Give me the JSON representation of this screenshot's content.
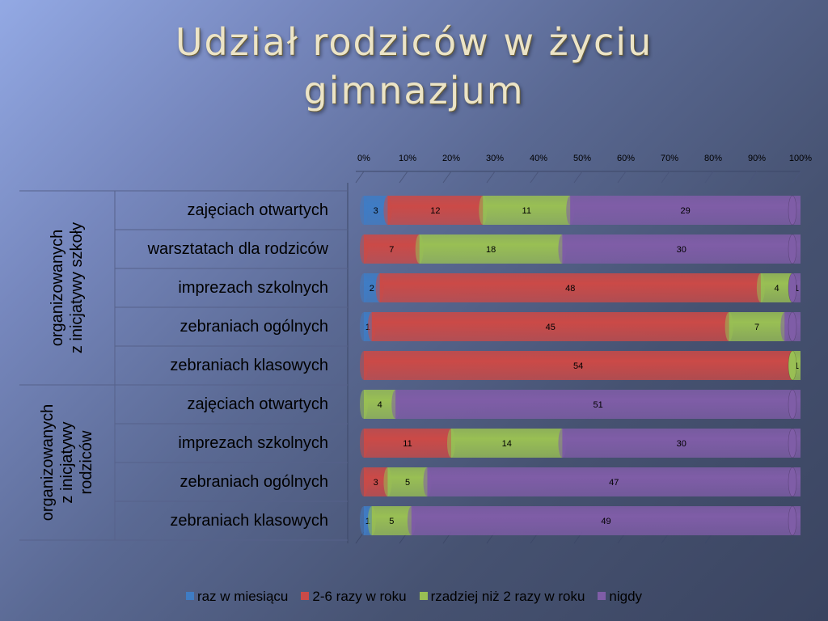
{
  "title": {
    "line1": "Udział rodziców w życiu",
    "line2": "gimnazjum"
  },
  "colors": {
    "raz": "#3f7cc4",
    "kilka": "#cb4a47",
    "rzadziej": "#99bf54",
    "nigdy": "#7f5da7"
  },
  "chart_data": {
    "type": "bar",
    "orientation": "horizontal",
    "stacked": "percent",
    "x_ticks": [
      "0%",
      "10%",
      "20%",
      "30%",
      "40%",
      "50%",
      "60%",
      "70%",
      "80%",
      "90%",
      "100%"
    ],
    "groups": [
      {
        "label_line1": "organizowanych",
        "label_line2": "z inicjatywy szkoły",
        "label_line3": ""
      },
      {
        "label_line1": "organizowanych",
        "label_line2": "z inicjatywy",
        "label_line3": "rodziców"
      }
    ],
    "categories": [
      "zajęciach otwartych",
      "warsztatach dla rodziców",
      "imprezach szkolnych",
      "zebraniach ogólnych",
      "zebraniach klasowych",
      "zajęciach otwartych",
      "imprezach szkolnych",
      "zebraniach ogólnych",
      "zebraniach klasowych"
    ],
    "series": [
      {
        "name": "raz w miesiącu",
        "values": [
          3,
          0,
          2,
          1,
          0,
          0,
          0,
          0,
          1
        ]
      },
      {
        "name": "2-6 razy w roku",
        "values": [
          12,
          7,
          48,
          45,
          54,
          0,
          11,
          3,
          0
        ]
      },
      {
        "name": "rzadziej niż 2 razy w roku",
        "values": [
          11,
          18,
          4,
          7,
          1,
          4,
          14,
          5,
          5
        ]
      },
      {
        "name": "nigdy",
        "values": [
          29,
          30,
          1,
          2,
          0,
          51,
          30,
          47,
          49
        ]
      }
    ],
    "xlim": [
      0,
      100
    ],
    "legend_position": "bottom"
  }
}
